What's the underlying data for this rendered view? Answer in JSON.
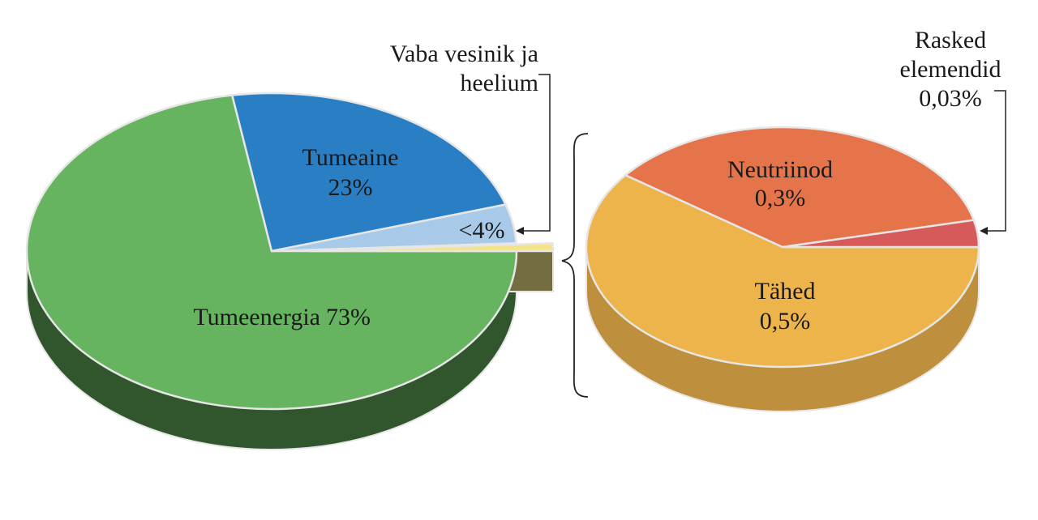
{
  "chart_data": [
    {
      "type": "pie",
      "categories": [
        "Tumeenergia",
        "Tumeaine",
        "Vaba vesinik ja heelium",
        null
      ],
      "values": [
        73,
        23,
        4,
        0.8
      ],
      "value_labels": [
        "73%",
        "23%",
        "<4%",
        null
      ],
      "colors": [
        "#66b360",
        "#2a7fc4",
        "#a9c9e9",
        "#f2e48a"
      ]
    },
    {
      "type": "pie",
      "categories": [
        "Tähed",
        "Neutriinod",
        "Rasked elemendid"
      ],
      "values": [
        0.5,
        0.3,
        0.03
      ],
      "value_labels": [
        "0,5%",
        "0,3%",
        "0,03%"
      ],
      "colors": [
        "#eeb44c",
        "#e5744a",
        "#d65a5a"
      ]
    }
  ]
}
